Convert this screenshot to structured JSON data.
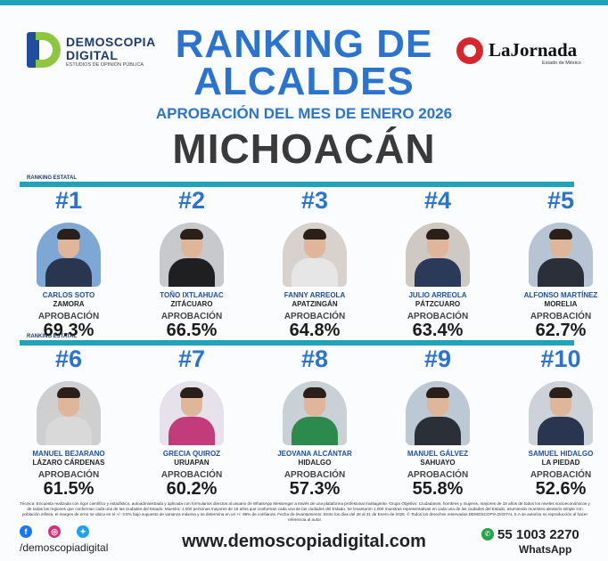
{
  "header": {
    "logo_left": {
      "line1": "DEMOSCOPIA",
      "line2": "DIGITAL",
      "line3": "ESTUDIOS DE OPINIÓN PÚBLICA"
    },
    "logo_right": {
      "name": "LaJornada",
      "sub": "Estado de México"
    },
    "title_line1": "RANKING DE",
    "title_line2": "ALCALDES",
    "subtitle": "APROBACIÓN DEL MES DE ENERO 2026",
    "state": "MICHOACÁN"
  },
  "section_label": "RANKING ESTATAL",
  "approval_label": "APROBACIÓN",
  "mayors": [
    {
      "rank": "#1",
      "name": "CARLOS SOTO",
      "city": "ZAMORA",
      "approval": "69.3%"
    },
    {
      "rank": "#2",
      "name": "TOÑO IXTLAHUAC",
      "city": "ZITÁCUARO",
      "approval": "66.5%"
    },
    {
      "rank": "#3",
      "name": "FANNY ARREOLA",
      "city": "APATZINGÁN",
      "approval": "64.8%"
    },
    {
      "rank": "#4",
      "name": "JULIO ARREOLA",
      "city": "PÁTZCUARO",
      "approval": "63.4%"
    },
    {
      "rank": "#5",
      "name": "ALFONSO MARTÍNEZ",
      "city": "MORELIA",
      "approval": "62.7%"
    },
    {
      "rank": "#6",
      "name": "MANUEL BEJARANO",
      "city": "LÁZARO CÁRDENAS",
      "approval": "61.5%"
    },
    {
      "rank": "#7",
      "name": "GRECIA QUIROZ",
      "city": "URUAPAN",
      "approval": "60.2%"
    },
    {
      "rank": "#8",
      "name": "JEOVANA ALCÁNTAR",
      "city": "HIDALGO",
      "approval": "57.3%"
    },
    {
      "rank": "#9",
      "name": "MANUEL GÁLVEZ",
      "city": "SAHUAYO",
      "approval": "55.8%"
    },
    {
      "rank": "#10",
      "name": "SAMUEL HIDALGO",
      "city": "LA PIEDAD",
      "approval": "52.6%"
    }
  ],
  "footer": {
    "note": "Técnica: Encuesta realizada con rigor científico y estadístico, autoadministrada y aplicada con formularios directos al usuario de WhatsApp Messenger a través de una plataforma profesional multiagente. Grupo Objetivo: Ciudadanos, hombres y mujeres, mayores de 18 años de todos los niveles socioeconómicos y de todas las regiones que conforman cada una de las ciudades del Estado. Muestra: 1,000 personas mayores de 18 años que conforman cada una de las ciudades del Estado. Se levantaron 1,000 muestras representativas en cada una de las ciudades del Estado, asumiendo muestreo aleatorio simple con población infinita, el margen de error se ubica en el +/- 3.8% bajo supuesto de varianza máxima y se determina en un +/- 95% de confianza. Fecha de levantamiento: Entre los días del 28 al 31 de Enero de 2026. © Todos los derechos reservados DEMOSCOPIA DIGITAL S.A se autoriza su reproducción al hacer referencia al autor.",
    "social_handle": "/demoscopiadigital",
    "website": "www.demoscopiadigital.com",
    "phone": "55 1003 2270",
    "whatsapp_label": "WhatsApp"
  },
  "colors": {
    "accent_blue": "#2a74d0",
    "teal_bar": "#1fa3b8",
    "navy": "#1e3a6e"
  },
  "icons": [
    "facebook-icon",
    "instagram-icon",
    "twitter-icon",
    "whatsapp-icon"
  ]
}
